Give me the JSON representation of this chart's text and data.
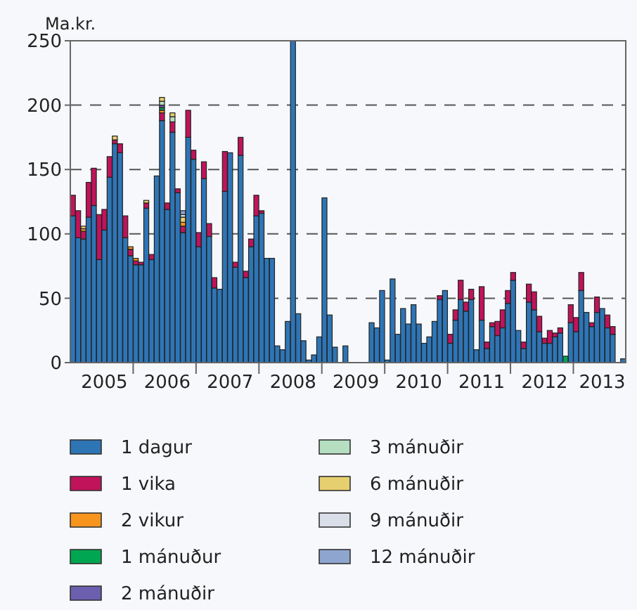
{
  "chart_data": {
    "type": "bar",
    "stacked": true,
    "ylabel": "Ma.kr.",
    "categories": [
      null,
      null,
      null,
      null,
      null,
      null,
      "2005",
      null,
      null,
      null,
      null,
      null,
      null,
      null,
      null,
      null,
      null,
      null,
      "2006",
      null,
      null,
      null,
      null,
      null,
      null,
      null,
      null,
      null,
      null,
      null,
      "2007",
      null,
      null,
      null,
      null,
      null,
      null,
      null,
      null,
      null,
      null,
      null,
      "2008",
      null,
      null,
      null,
      null,
      null,
      null,
      null,
      null,
      null,
      null,
      null,
      "2009",
      null,
      null,
      null,
      null,
      null,
      null,
      null,
      null,
      null,
      null,
      null,
      "2010",
      null,
      null,
      null,
      null,
      null,
      null,
      null,
      null,
      null,
      null,
      null,
      "2011",
      null,
      null,
      null,
      null,
      null,
      null,
      null,
      null,
      null,
      null,
      null,
      "2012",
      null,
      null,
      null,
      null,
      null,
      null,
      null,
      null,
      null,
      null,
      "2013",
      null,
      null,
      null,
      null
    ],
    "ylim": [
      0,
      250
    ],
    "yticks": [
      0,
      50,
      100,
      150,
      200,
      250
    ],
    "grid": "y",
    "legend": "bottom",
    "series": [
      {
        "name": "1 dagur",
        "color": "#2e75b6",
        "values": [
          114,
          97,
          96,
          113,
          122,
          80,
          103,
          144,
          170,
          163,
          97,
          83,
          76,
          76,
          120,
          80,
          145,
          188,
          119,
          179,
          132,
          101,
          175,
          158,
          90,
          143,
          98,
          58,
          57,
          133,
          163,
          74,
          161,
          66,
          90,
          114,
          116,
          81,
          81,
          13,
          10,
          32,
          250,
          38,
          17,
          2,
          6,
          20,
          128,
          37,
          12,
          0,
          13,
          0,
          0,
          0,
          0,
          31,
          27,
          56,
          2,
          65,
          22,
          42,
          30,
          45,
          30,
          15,
          20,
          32,
          49,
          56,
          15,
          33,
          49,
          40,
          49,
          10,
          33,
          11,
          28,
          21,
          27,
          46,
          64,
          25,
          11,
          47,
          41,
          24,
          15,
          15,
          20,
          23,
          null,
          31,
          24,
          56,
          39,
          28,
          39,
          42,
          27,
          22,
          null,
          3
        ]
      },
      {
        "name": "1 vika",
        "color": "#c0135a",
        "values": [
          16,
          21,
          6,
          27,
          29,
          35,
          16,
          16,
          3,
          7,
          17,
          5,
          3,
          2,
          4,
          4,
          null,
          6,
          5,
          8,
          3,
          5,
          21,
          7,
          11,
          13,
          10,
          8,
          null,
          31,
          null,
          4,
          14,
          5,
          6,
          16,
          2,
          null,
          null,
          null,
          null,
          null,
          null,
          null,
          null,
          null,
          null,
          null,
          null,
          null,
          null,
          null,
          null,
          null,
          null,
          null,
          null,
          null,
          null,
          null,
          null,
          null,
          null,
          null,
          null,
          null,
          null,
          null,
          null,
          null,
          3,
          null,
          7,
          8,
          15,
          7,
          8,
          null,
          26,
          5,
          3,
          11,
          14,
          10,
          6,
          null,
          5,
          14,
          14,
          12,
          4,
          10,
          3,
          4,
          null,
          14,
          11,
          14,
          null,
          3,
          12,
          null,
          10,
          6,
          null,
          null
        ]
      },
      {
        "name": "2 vikur",
        "color": "#f7941d",
        "values": [
          null,
          null,
          2,
          null,
          null,
          null,
          null,
          null,
          null,
          null,
          null,
          2,
          2,
          null,
          null,
          null,
          null,
          2,
          null,
          null,
          null,
          3,
          null,
          null,
          null,
          null,
          null,
          null,
          null,
          null,
          null,
          null,
          null,
          null,
          null,
          null,
          null,
          null,
          null,
          null,
          null,
          null,
          null,
          null,
          null,
          null,
          null,
          null,
          null,
          null,
          null,
          null,
          null,
          null,
          null,
          null,
          null,
          null,
          null,
          null,
          null,
          null,
          null,
          null,
          null,
          null,
          null,
          null,
          null,
          null,
          null,
          null,
          null,
          null,
          null,
          null,
          null,
          null,
          null,
          null,
          null,
          null,
          null,
          null,
          null,
          null,
          null,
          null,
          null,
          null,
          null,
          null,
          null,
          null,
          null,
          null,
          null,
          null,
          null,
          null,
          null,
          null,
          null,
          null,
          null,
          null
        ]
      },
      {
        "name": "1 mánuður",
        "color": "#00a651",
        "values": [
          null,
          null,
          null,
          null,
          null,
          null,
          null,
          null,
          null,
          null,
          null,
          null,
          null,
          null,
          null,
          null,
          null,
          2,
          null,
          null,
          null,
          null,
          null,
          null,
          null,
          null,
          null,
          null,
          null,
          null,
          null,
          null,
          null,
          null,
          null,
          null,
          null,
          null,
          null,
          null,
          null,
          null,
          null,
          null,
          null,
          null,
          null,
          null,
          null,
          null,
          null,
          null,
          null,
          null,
          null,
          null,
          null,
          null,
          null,
          null,
          null,
          null,
          null,
          null,
          null,
          null,
          null,
          null,
          null,
          null,
          null,
          null,
          null,
          null,
          null,
          null,
          null,
          null,
          null,
          null,
          null,
          null,
          null,
          null,
          null,
          null,
          null,
          null,
          null,
          null,
          null,
          null,
          null,
          null,
          5,
          null,
          null,
          null,
          null,
          null,
          null,
          null,
          null,
          null,
          null,
          null
        ]
      },
      {
        "name": "2 mánuðir",
        "color": "#6c5fb0",
        "values": [
          null,
          null,
          null,
          null,
          null,
          null,
          null,
          null,
          null,
          null,
          null,
          null,
          null,
          null,
          null,
          null,
          null,
          2,
          null,
          null,
          null,
          null,
          null,
          null,
          null,
          null,
          null,
          null,
          null,
          null,
          null,
          null,
          null,
          null,
          null,
          null,
          null,
          null,
          null,
          null,
          null,
          null,
          null,
          null,
          null,
          null,
          null,
          null,
          null,
          null,
          null,
          null,
          null,
          null,
          null,
          null,
          null,
          null,
          null,
          null,
          null,
          null,
          null,
          null,
          null,
          null,
          null,
          null,
          null,
          null,
          null,
          null,
          null,
          null,
          null,
          null,
          null,
          null,
          null,
          null,
          null,
          null,
          null,
          null,
          null,
          null,
          null,
          null,
          null,
          null,
          null,
          null,
          null,
          null,
          null,
          null,
          null,
          null,
          null,
          null,
          null,
          null,
          null,
          null,
          null,
          null
        ]
      },
      {
        "name": "3 mánuðir",
        "color": "#b5dfc0",
        "values": [
          null,
          null,
          null,
          null,
          null,
          null,
          null,
          null,
          null,
          null,
          null,
          null,
          null,
          null,
          null,
          null,
          null,
          3,
          null,
          4,
          null,
          null,
          null,
          null,
          null,
          null,
          null,
          null,
          null,
          null,
          null,
          null,
          null,
          null,
          null,
          null,
          null,
          null,
          null,
          null,
          null,
          null,
          null,
          null,
          null,
          null,
          null,
          null,
          null,
          null,
          null,
          null,
          null,
          null,
          null,
          null,
          null,
          null,
          null,
          null,
          null,
          null,
          null,
          null,
          null,
          null,
          null,
          null,
          null,
          null,
          null,
          null,
          null,
          null,
          null,
          null,
          null,
          null,
          null,
          null,
          null,
          null,
          null,
          null,
          null,
          null,
          null,
          null,
          null,
          null,
          null,
          null,
          null,
          null,
          null,
          null,
          null,
          null,
          null,
          null,
          null,
          null,
          null,
          null,
          null,
          null
        ]
      },
      {
        "name": "6 mánuðir",
        "color": "#e6cf6e",
        "values": [
          null,
          null,
          2,
          null,
          null,
          null,
          null,
          null,
          3,
          null,
          null,
          null,
          null,
          null,
          2,
          null,
          null,
          3,
          null,
          3,
          null,
          4,
          null,
          null,
          null,
          null,
          null,
          null,
          null,
          null,
          null,
          null,
          null,
          null,
          null,
          null,
          null,
          null,
          null,
          null,
          null,
          null,
          null,
          null,
          null,
          null,
          null,
          null,
          null,
          null,
          null,
          null,
          null,
          null,
          null,
          null,
          null,
          null,
          null,
          null,
          null,
          null,
          null,
          null,
          null,
          null,
          null,
          null,
          null,
          null,
          null,
          null,
          null,
          null,
          null,
          null,
          null,
          null,
          null,
          null,
          null,
          null,
          null,
          null,
          null,
          null,
          null,
          null,
          null,
          null,
          null,
          null,
          null,
          null,
          null,
          null,
          null,
          null,
          null,
          null,
          null,
          null,
          null,
          null,
          null,
          null
        ]
      },
      {
        "name": "9 mánuðir",
        "color": "#d9dee8",
        "values": [
          null,
          null,
          null,
          null,
          null,
          null,
          null,
          null,
          null,
          null,
          null,
          null,
          null,
          null,
          null,
          null,
          null,
          null,
          null,
          null,
          null,
          2,
          null,
          null,
          null,
          null,
          null,
          null,
          null,
          null,
          null,
          null,
          null,
          null,
          null,
          null,
          null,
          null,
          null,
          null,
          null,
          null,
          null,
          null,
          null,
          null,
          null,
          null,
          null,
          null,
          null,
          null,
          null,
          null,
          null,
          null,
          null,
          null,
          null,
          null,
          null,
          null,
          null,
          null,
          null,
          null,
          null,
          null,
          null,
          null,
          null,
          null,
          null,
          null,
          null,
          null,
          null,
          null,
          null,
          null,
          null,
          null,
          null,
          null,
          null,
          null,
          null,
          null,
          null,
          null,
          null,
          null,
          null,
          null,
          null,
          null,
          null,
          null,
          null,
          null,
          null,
          null,
          null,
          null,
          null,
          null
        ]
      },
      {
        "name": "12 mánuðir",
        "color": "#8ea6cf",
        "values": [
          null,
          null,
          null,
          null,
          null,
          null,
          null,
          null,
          null,
          null,
          null,
          null,
          null,
          null,
          null,
          null,
          null,
          null,
          null,
          null,
          null,
          3,
          null,
          null,
          null,
          null,
          null,
          null,
          null,
          null,
          null,
          null,
          null,
          null,
          null,
          null,
          null,
          null,
          null,
          null,
          null,
          null,
          null,
          null,
          null,
          null,
          null,
          null,
          null,
          null,
          null,
          null,
          null,
          null,
          null,
          null,
          null,
          null,
          null,
          null,
          null,
          null,
          null,
          null,
          null,
          null,
          null,
          null,
          null,
          null,
          null,
          null,
          null,
          null,
          null,
          null,
          null,
          null,
          null,
          null,
          null,
          null,
          null,
          null,
          null,
          null,
          null,
          null,
          null,
          null,
          null,
          null,
          null,
          null,
          null,
          null,
          null,
          null,
          null,
          null,
          null,
          null,
          null,
          null,
          null,
          null
        ]
      }
    ]
  }
}
